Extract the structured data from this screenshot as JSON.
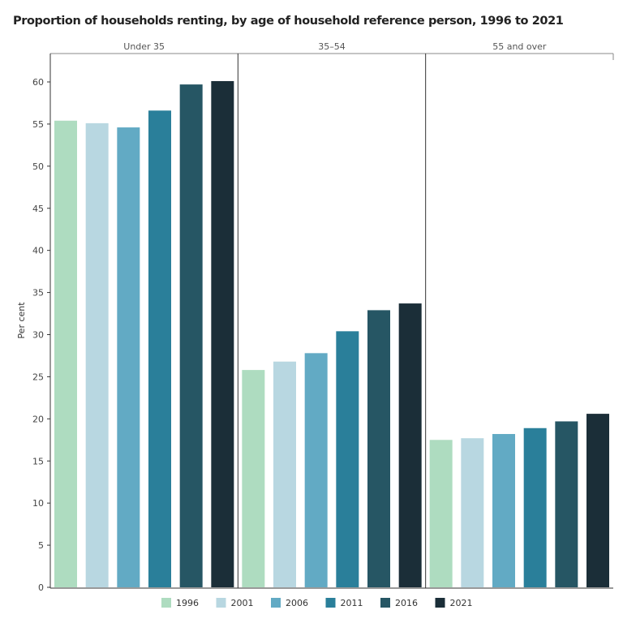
{
  "chart_data": {
    "type": "bar",
    "title": "Proportion of households renting, by age of household reference person, 1996 to 2021",
    "ylabel": "Per cent",
    "xlabel": "",
    "ylim": [
      0,
      63
    ],
    "yticks": [
      0,
      5,
      10,
      15,
      20,
      25,
      30,
      35,
      40,
      45,
      50,
      55,
      60
    ],
    "categories": [
      "Under 35",
      "35–54",
      "55 and over"
    ],
    "series": [
      {
        "name": "1996",
        "color": "#aedcc0",
        "values": [
          55.4,
          25.8,
          17.5
        ]
      },
      {
        "name": "2001",
        "color": "#b8d7e1",
        "values": [
          55.1,
          26.8,
          17.7
        ]
      },
      {
        "name": "2006",
        "color": "#62aac4",
        "values": [
          54.6,
          27.8,
          18.2
        ]
      },
      {
        "name": "2011",
        "color": "#2a7f9a",
        "values": [
          56.6,
          30.4,
          18.9
        ]
      },
      {
        "name": "2016",
        "color": "#265664",
        "values": [
          59.7,
          32.9,
          19.7
        ]
      },
      {
        "name": "2021",
        "color": "#1b2e38",
        "values": [
          60.1,
          33.7,
          20.6
        ]
      }
    ],
    "legend_position": "bottom",
    "grid": false
  }
}
